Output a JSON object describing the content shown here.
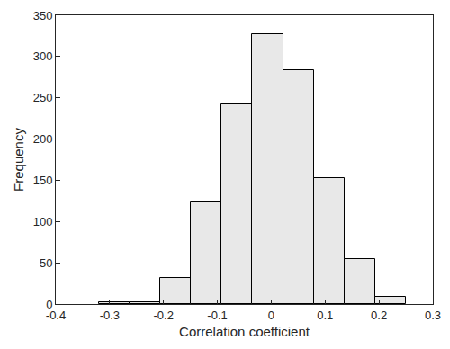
{
  "chart_data": {
    "type": "histogram",
    "bins": [
      -0.32,
      -0.263,
      -0.206,
      -0.149,
      -0.092,
      -0.035,
      0.022,
      0.079,
      0.136,
      0.193,
      0.25
    ],
    "values": [
      2,
      2,
      32,
      123,
      242,
      327,
      283,
      153,
      54,
      9
    ],
    "color": "#e8e8e8",
    "x_label": "Correlation coefficient",
    "y_label": "Frequency",
    "xlim": [
      -0.4,
      0.3
    ],
    "xticks": [
      -0.4,
      -0.3,
      -0.2,
      -0.1,
      0,
      0.1,
      0.2,
      0.3
    ],
    "ylim": [
      0,
      350
    ],
    "yticks": [
      0,
      50,
      100,
      150,
      200,
      250,
      300,
      350
    ],
    "grid": false
  }
}
